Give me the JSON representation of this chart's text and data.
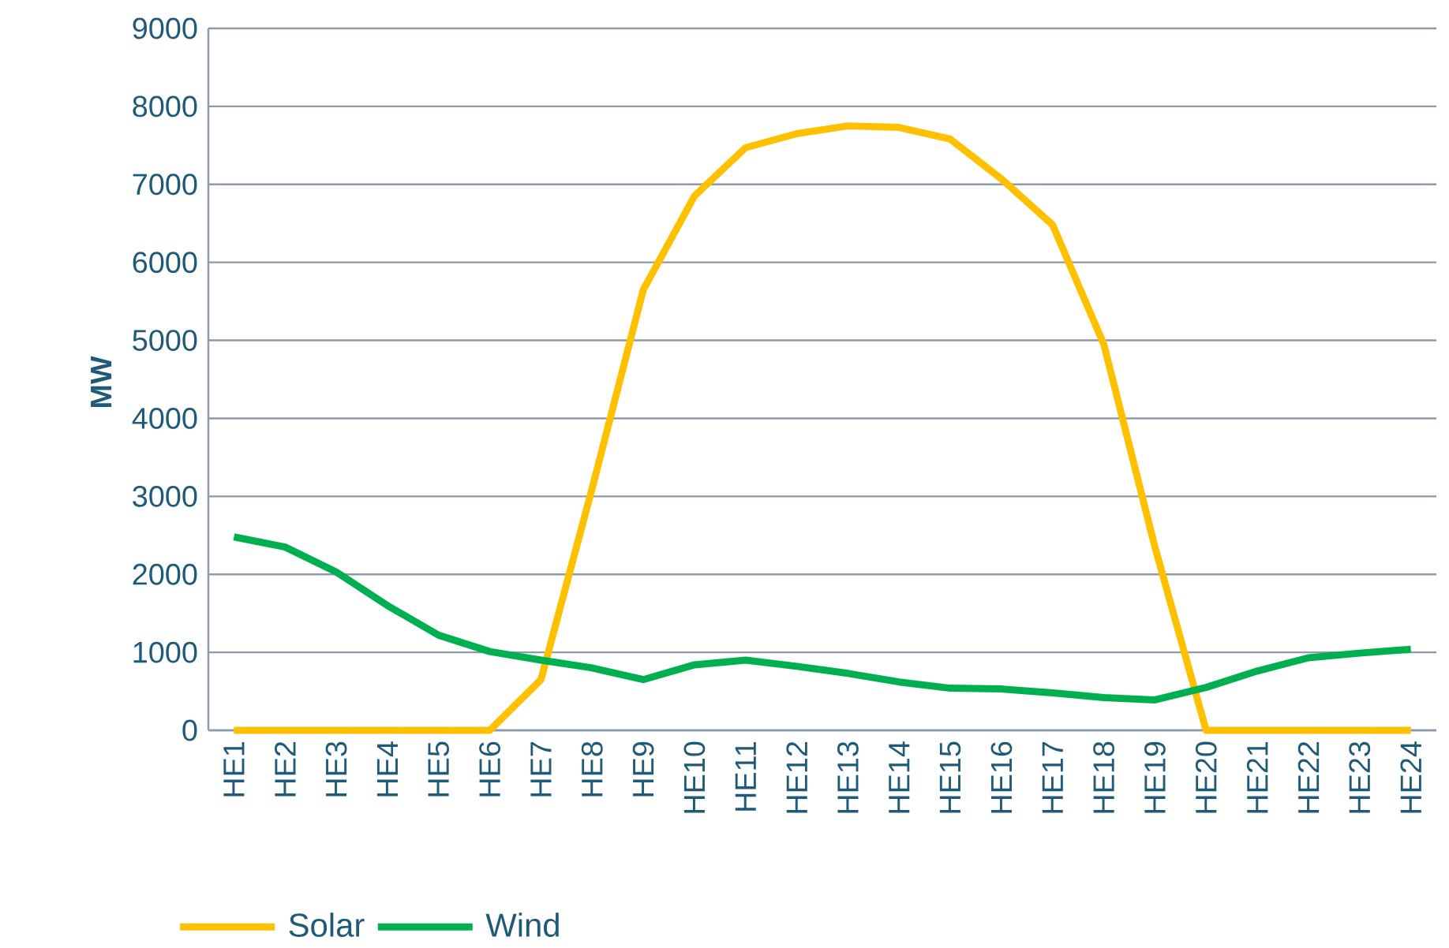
{
  "chart_data": {
    "type": "line",
    "ylabel": "MW",
    "categories": [
      "HE1",
      "HE2",
      "HE3",
      "HE4",
      "HE5",
      "HE6",
      "HE7",
      "HE8",
      "HE9",
      "HE10",
      "HE11",
      "HE12",
      "HE13",
      "HE14",
      "HE15",
      "HE16",
      "HE17",
      "HE18",
      "HE19",
      "HE20",
      "HE21",
      "HE22",
      "HE23",
      "HE24"
    ],
    "series": [
      {
        "name": "Solar",
        "color": "#ffc000",
        "values": [
          0,
          0,
          0,
          0,
          0,
          0,
          650,
          3100,
          5650,
          6850,
          7470,
          7650,
          7750,
          7730,
          7580,
          7070,
          6480,
          4950,
          2350,
          0,
          0,
          0,
          0,
          0
        ]
      },
      {
        "name": "Wind",
        "color": "#00b050",
        "values": [
          2480,
          2350,
          2030,
          1600,
          1220,
          1010,
          900,
          800,
          650,
          840,
          900,
          820,
          730,
          620,
          540,
          530,
          480,
          420,
          390,
          550,
          760,
          930,
          990,
          1040
        ]
      }
    ],
    "ylim": [
      0,
      9000
    ],
    "yticks": [
      0,
      1000,
      2000,
      3000,
      4000,
      5000,
      6000,
      7000,
      8000,
      9000
    ],
    "grid": "y",
    "legend": "bottom left",
    "marker": "none",
    "line_style": "solid"
  }
}
